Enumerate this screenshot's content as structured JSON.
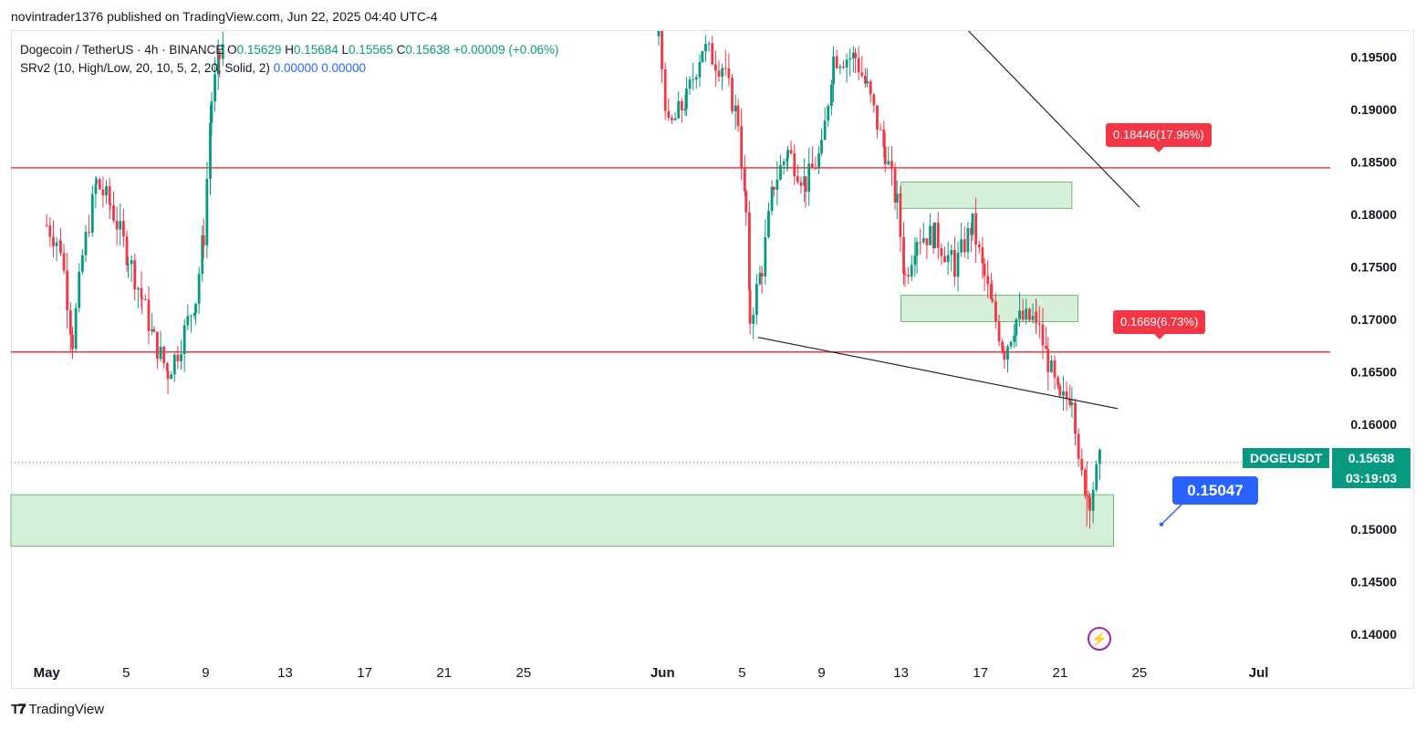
{
  "published": "novintrader1376 published on TradingView.com, Jun 22, 2025 04:40 UTC-4",
  "legend": {
    "line1_symbol": "Dogecoin / TetherUS · 4h · BINANCE",
    "o_label": "O",
    "o_val": "0.15629",
    "h_label": "H",
    "h_val": "0.15684",
    "l_label": "L",
    "l_val": "0.15565",
    "c_label": "C",
    "c_val": "0.15638",
    "change": "+0.00009 (+0.06%)",
    "line2_ind": "SRv2 (10, High/Low, 20, 10, 5, 2, 20, Solid, 2)",
    "ind_v1": "0.00000",
    "ind_v2": "0.00000"
  },
  "price_tag": {
    "symbol": "DOGEUSDT",
    "price": "0.15638",
    "countdown": "03:19:03"
  },
  "callouts": {
    "upper": "0.18446(17.96%)",
    "lower": "0.1669(6.73%)",
    "target": "0.15047"
  },
  "footer_brand": "TradingView",
  "colors": {
    "up": "#089981",
    "down": "#f23645",
    "zone": "#d6efd8",
    "zone_border": "#4caf50",
    "sr_line": "#f23645",
    "target": "#2962ff"
  },
  "chart_data": {
    "type": "candlestick",
    "title": "Dogecoin / TetherUS · 4h · BINANCE",
    "y_ticks": [
      "0.19500",
      "0.19000",
      "0.18500",
      "0.18000",
      "0.17500",
      "0.17000",
      "0.16500",
      "0.16000",
      "0.15000",
      "0.14500",
      "0.14000"
    ],
    "ylim": [
      0.138,
      0.1975
    ],
    "x_ticks": [
      {
        "label": "May",
        "day": 0
      },
      {
        "label": "5",
        "day": 4
      },
      {
        "label": "9",
        "day": 8
      },
      {
        "label": "13",
        "day": 12
      },
      {
        "label": "17",
        "day": 16
      },
      {
        "label": "21",
        "day": 20
      },
      {
        "label": "25",
        "day": 24
      },
      {
        "label": "Jun",
        "day": 31
      },
      {
        "label": "5",
        "day": 35
      },
      {
        "label": "9",
        "day": 39
      },
      {
        "label": "13",
        "day": 43
      },
      {
        "label": "17",
        "day": 47
      },
      {
        "label": "21",
        "day": 51
      },
      {
        "label": "25",
        "day": 55
      },
      {
        "label": "Jul",
        "day": 61
      }
    ],
    "xlim_days": [
      -1.8,
      64.6
    ],
    "price_path": [
      [
        0,
        0.179
      ],
      [
        0.7,
        0.177
      ],
      [
        1.3,
        0.168
      ],
      [
        1.8,
        0.176
      ],
      [
        2.5,
        0.183
      ],
      [
        3.2,
        0.181
      ],
      [
        4.1,
        0.176
      ],
      [
        4.8,
        0.172
      ],
      [
        5.4,
        0.168
      ],
      [
        6.1,
        0.165
      ],
      [
        6.6,
        0.167
      ],
      [
        7.5,
        0.172
      ],
      [
        7.9,
        0.178
      ],
      [
        8.3,
        0.191
      ],
      [
        8.7,
        0.195
      ],
      [
        9.0,
        0.197
      ],
      [
        30.8,
        0.197
      ],
      [
        31.3,
        0.188
      ],
      [
        32.2,
        0.191
      ],
      [
        33.0,
        0.196
      ],
      [
        34.0,
        0.194
      ],
      [
        34.8,
        0.189
      ],
      [
        35.2,
        0.18
      ],
      [
        35.4,
        0.17
      ],
      [
        36.0,
        0.175
      ],
      [
        36.6,
        0.183
      ],
      [
        37.3,
        0.186
      ],
      [
        38.2,
        0.183
      ],
      [
        39.0,
        0.186
      ],
      [
        39.6,
        0.195
      ],
      [
        40.7,
        0.195
      ],
      [
        41.3,
        0.192
      ],
      [
        42.2,
        0.186
      ],
      [
        42.8,
        0.181
      ],
      [
        43.2,
        0.174
      ],
      [
        43.8,
        0.178
      ],
      [
        44.7,
        0.178
      ],
      [
        45.7,
        0.175
      ],
      [
        46.6,
        0.179
      ],
      [
        47.2,
        0.174
      ],
      [
        47.6,
        0.171
      ],
      [
        48.2,
        0.167
      ],
      [
        48.8,
        0.17
      ],
      [
        49.8,
        0.17
      ],
      [
        50.4,
        0.166
      ],
      [
        51.0,
        0.162
      ],
      [
        51.6,
        0.163
      ],
      [
        52.1,
        0.155
      ],
      [
        52.5,
        0.153
      ],
      [
        53.0,
        0.1564
      ]
    ],
    "horizontal_levels": [
      0.18446,
      0.1669
    ],
    "zones": [
      {
        "from_day": -1.8,
        "to_day": 53.7,
        "low": 0.1484,
        "high": 0.1533
      },
      {
        "from_day": 43.0,
        "to_day": 51.6,
        "low": 0.1806,
        "high": 0.1831
      },
      {
        "from_day": 43.0,
        "to_day": 51.9,
        "low": 0.1698,
        "high": 0.1723
      }
    ],
    "trendlines": [
      {
        "from_day": 35.8,
        "from": 0.1683,
        "to_day": 53.9,
        "to": 0.1615
      },
      {
        "from_day": 46.4,
        "from": 0.1975,
        "to_day": 55.0,
        "to": 0.1807
      }
    ],
    "last_price": 0.15638,
    "target_price": 0.15047
  }
}
